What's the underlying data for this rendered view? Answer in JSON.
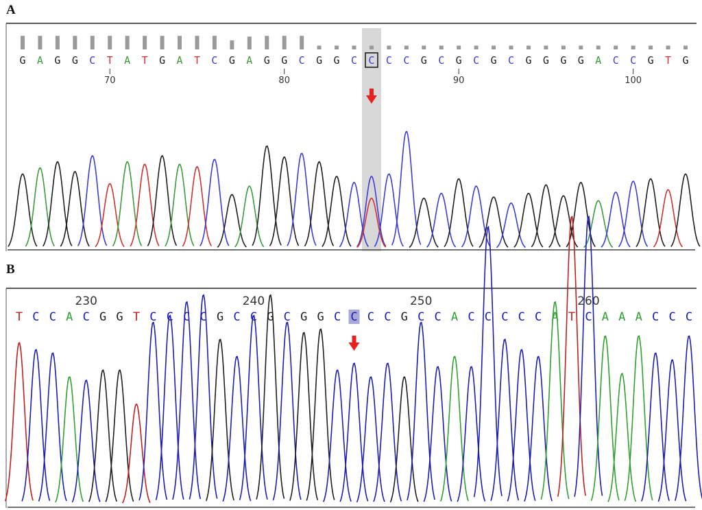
{
  "panels": [
    {
      "letter": "A",
      "chart_data": {
        "type": "line",
        "style": "sanger-chromatogram",
        "sequence": "GAGGCTATGATCGAGGCGGCCCCGCGCGCGGGGACCGTG",
        "highlighted_base_index": 20,
        "highlight_style": "gray-column-boxed",
        "position_ticks": [
          70,
          80,
          90,
          100
        ],
        "first_position": 65,
        "quality_bars": [
          0.9,
          0.9,
          0.9,
          0.9,
          0.9,
          0.9,
          0.9,
          0.9,
          0.9,
          0.9,
          0.9,
          0.9,
          0.6,
          0.85,
          0.9,
          0.9,
          0.9,
          0.25,
          0.25,
          0.25,
          0.25,
          0.25,
          0.25,
          0.25,
          0.25,
          0.25,
          0.25,
          0.25,
          0.25,
          0.25,
          0.25,
          0.25,
          0.25,
          0.25,
          0.25,
          0.25,
          0.25,
          0.25,
          0.25
        ],
        "peak_heights": [
          0.62,
          0.67,
          0.72,
          0.64,
          0.77,
          0.54,
          0.72,
          0.7,
          0.77,
          0.7,
          0.68,
          0.74,
          0.45,
          0.52,
          0.85,
          0.76,
          0.79,
          0.72,
          0.6,
          0.55,
          0.6,
          0.62,
          0.97,
          0.42,
          0.46,
          0.58,
          0.52,
          0.43,
          0.38,
          0.46,
          0.53,
          0.44,
          0.55,
          0.4,
          0.47,
          0.56,
          0.58,
          0.49,
          0.62
        ],
        "secondary_peak": {
          "base_index": 20,
          "base": "T",
          "height": 0.42
        },
        "colors": {
          "A": "#3a9a3a",
          "C": "#3b3bd6",
          "G": "#1e1e1e",
          "T": "#d03030"
        },
        "arrow": "down"
      }
    },
    {
      "letter": "B",
      "chart_data": {
        "type": "line",
        "style": "sanger-chromatogram",
        "sequence": "TCCACGGTCCCCGCCGCGGCCCCGCCACCCCCATCAAACCC",
        "highlighted_base_index": 20,
        "highlight_style": "blue-shaded-letter",
        "position_ticks": [
          230,
          240,
          250,
          260
        ],
        "first_position": 226,
        "peak_heights": [
          0.48,
          0.46,
          0.45,
          0.38,
          0.37,
          0.4,
          0.4,
          0.3,
          0.54,
          0.56,
          0.6,
          0.62,
          0.49,
          0.44,
          0.56,
          0.62,
          0.54,
          0.51,
          0.52,
          0.4,
          0.42,
          0.38,
          0.42,
          0.38,
          0.54,
          0.41,
          0.44,
          0.41,
          0.82,
          0.49,
          0.46,
          0.44,
          0.6,
          0.85,
          0.85,
          0.5,
          0.39,
          0.5,
          0.45,
          0.43,
          0.5
        ],
        "colors": {
          "A": "#2ea02e",
          "C": "#1c1cb4",
          "G": "#1e1e1e",
          "T": "#c01e1e"
        },
        "arrow": "down"
      }
    }
  ]
}
